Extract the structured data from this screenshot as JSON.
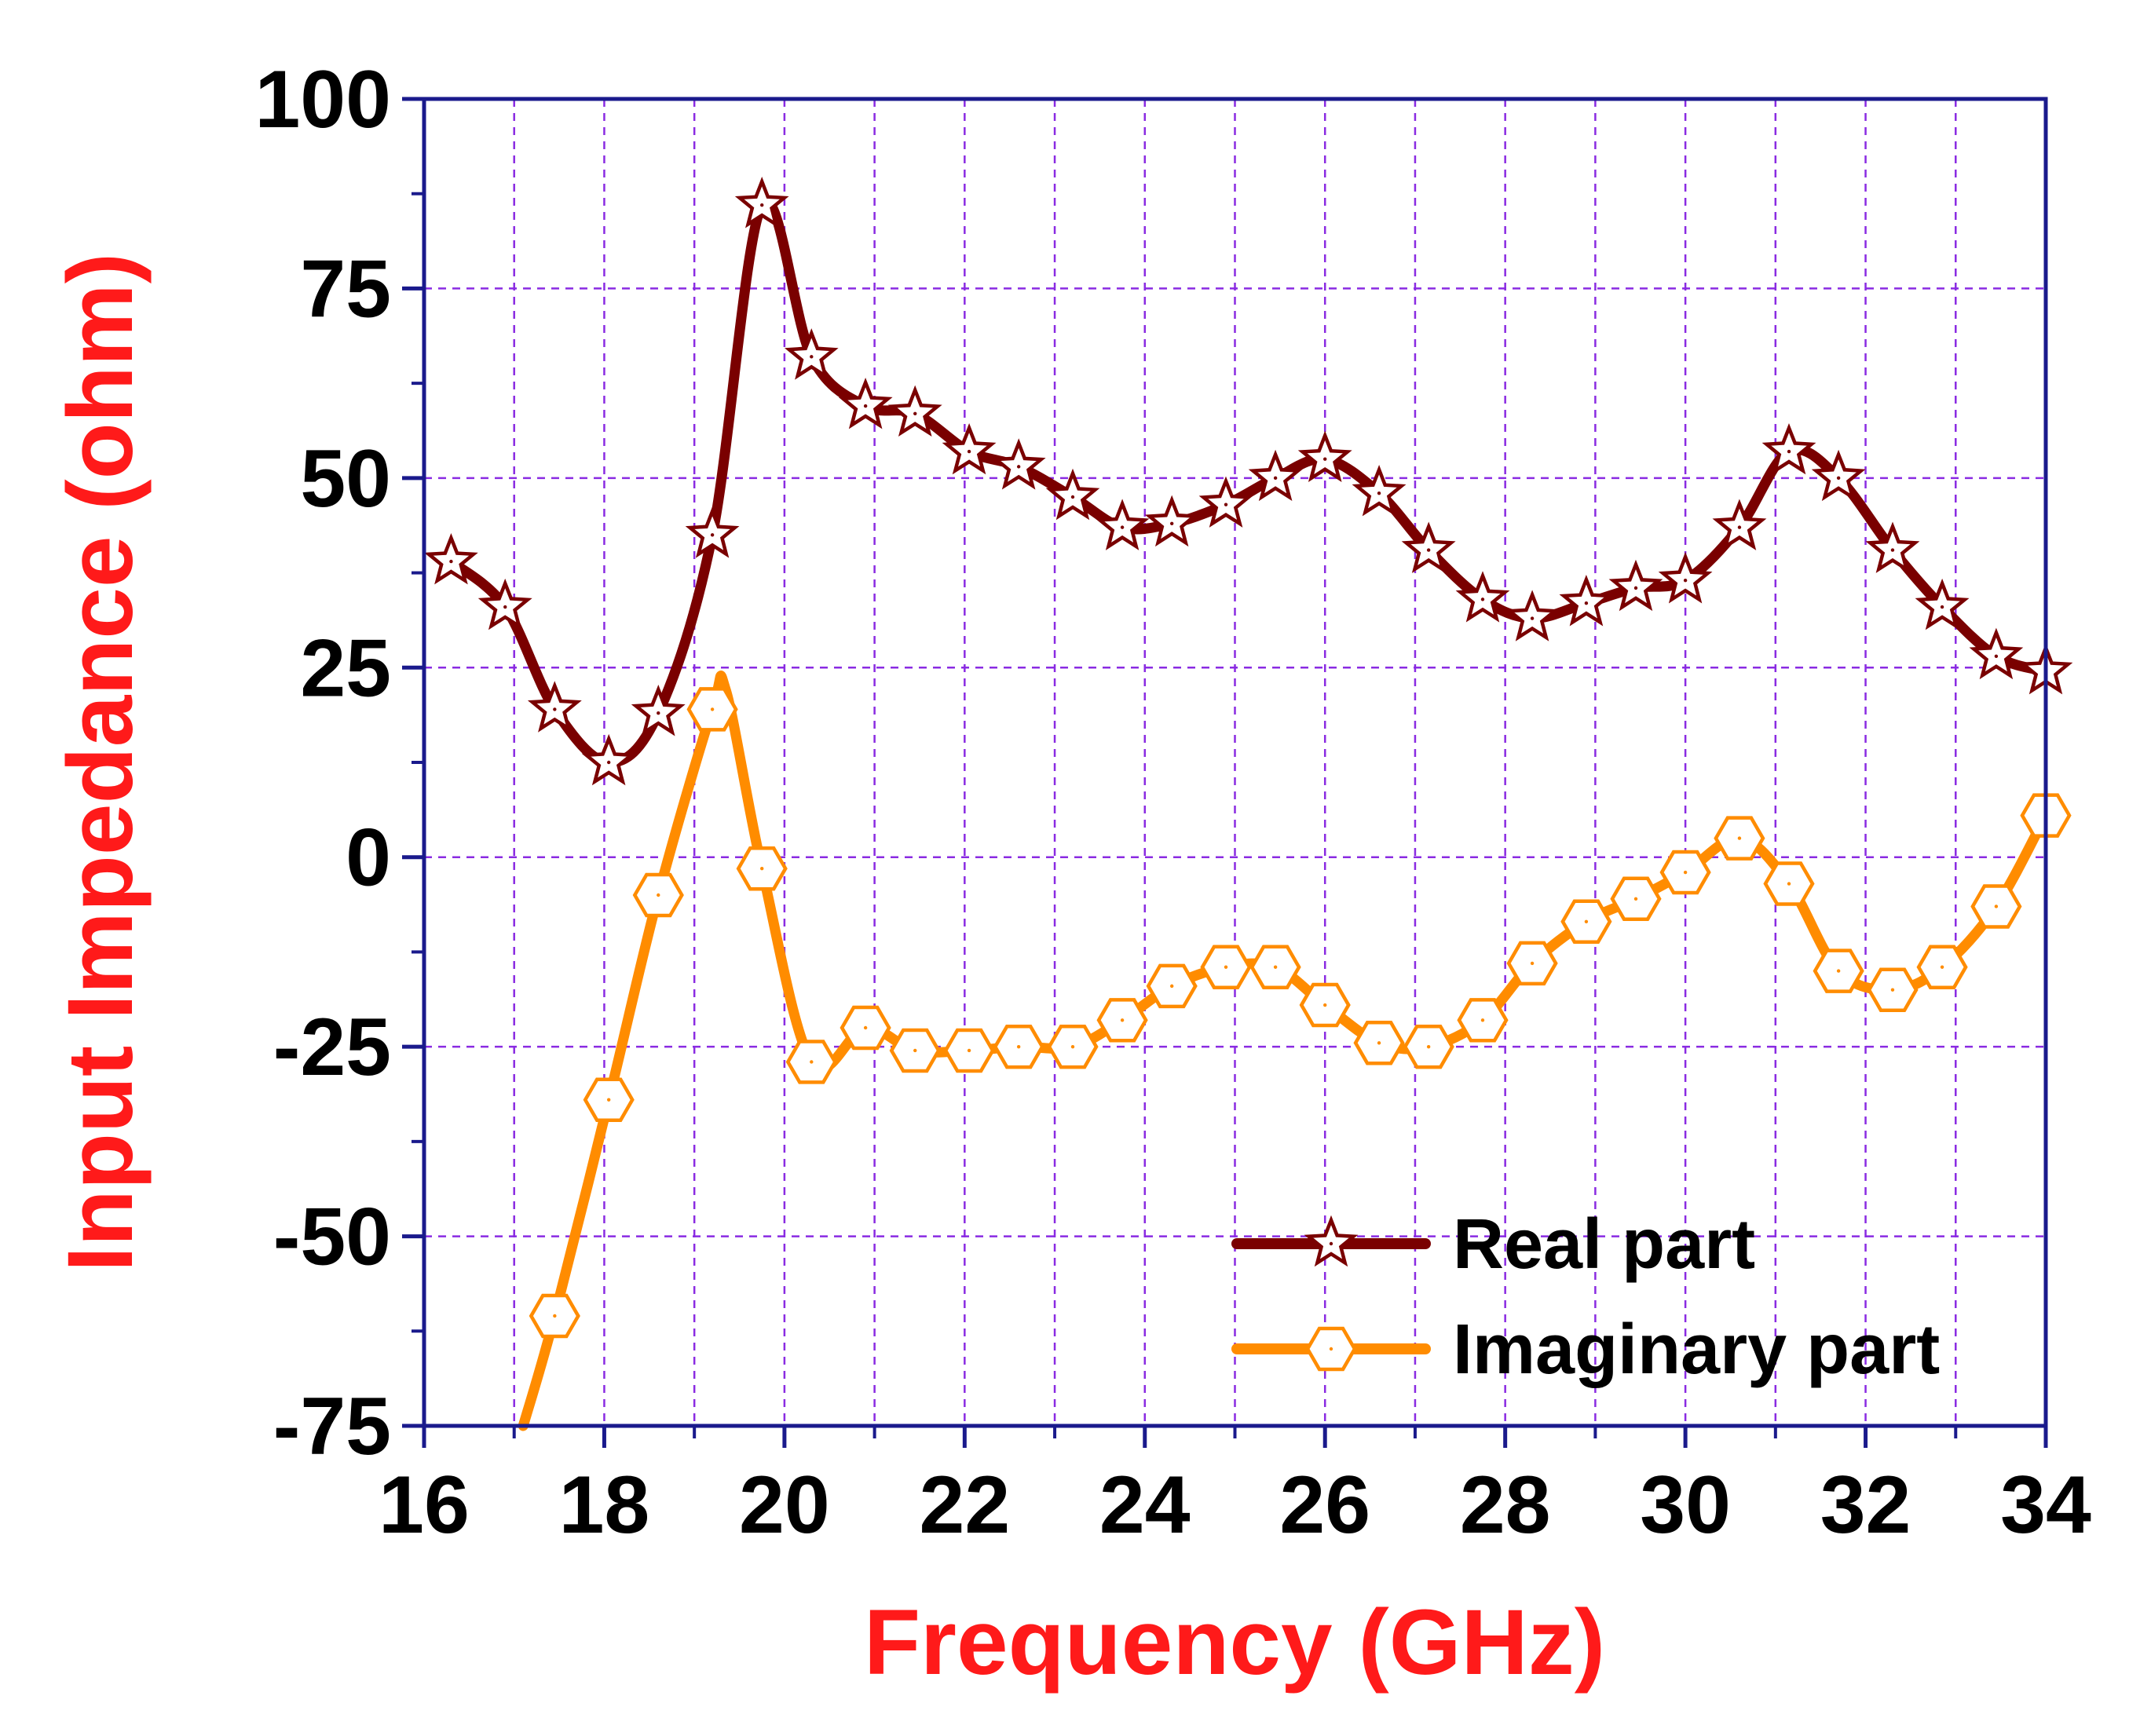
{
  "chart_data": {
    "type": "line",
    "xlabel": "Frequency (GHz)",
    "ylabel": "Input Impedance (ohm)",
    "xlim": [
      16,
      34
    ],
    "ylim": [
      -75,
      100
    ],
    "xticks": [
      16,
      18,
      20,
      22,
      24,
      26,
      28,
      30,
      32,
      34
    ],
    "yticks": [
      -75,
      -50,
      -25,
      0,
      25,
      50,
      75,
      100
    ],
    "grid": true,
    "legend_position": "bottom-right",
    "colors": {
      "axis": "#1a1a8c",
      "grid": "#8a2be2",
      "title": "#ff1a1a",
      "real": "#7a0000",
      "imaginary": "#ff8c00"
    },
    "series": [
      {
        "name": "Real part",
        "marker": "star",
        "x": [
          16.3,
          16.9,
          17.45,
          18.05,
          18.6,
          19.2,
          19.75,
          20.3,
          20.9,
          21.45,
          22.05,
          22.6,
          23.2,
          23.75,
          24.3,
          24.9,
          25.45,
          26.0,
          26.6,
          27.15,
          27.75,
          28.3,
          28.9,
          29.45,
          30.0,
          30.6,
          31.15,
          31.7,
          32.3,
          32.85,
          33.45,
          34.0
        ],
        "values": [
          39,
          33,
          19.5,
          12.5,
          19,
          42.5,
          86,
          66,
          59.5,
          58.5,
          53.5,
          51.5,
          47.5,
          43.5,
          44,
          46.5,
          50,
          52.5,
          48,
          40.5,
          34,
          31.5,
          33.5,
          35.5,
          36.5,
          43.5,
          53.5,
          50,
          40.5,
          33,
          26.5,
          24.5
        ]
      },
      {
        "name": "Imaginary part",
        "marker": "hexagon",
        "x": [
          17.1,
          17.45,
          18.05,
          18.6,
          19.2,
          19.35,
          19.75,
          20.3,
          20.9,
          21.45,
          22.05,
          22.6,
          23.2,
          23.75,
          24.3,
          24.9,
          25.45,
          26.0,
          26.6,
          27.15,
          27.75,
          28.3,
          28.9,
          29.45,
          30.0,
          30.6,
          31.15,
          31.7,
          32.3,
          32.85,
          33.45,
          34.0
        ],
        "values": [
          -75,
          -60.5,
          -32,
          -5,
          19.5,
          22,
          -1.5,
          -27,
          -22.5,
          -25.5,
          -25.5,
          -25,
          -25,
          -21.5,
          -17,
          -14.5,
          -14.5,
          -19.5,
          -24.5,
          -25,
          -21.5,
          -14,
          -8.5,
          -5.5,
          -2,
          2.5,
          -3.5,
          -15,
          -17.5,
          -14.5,
          -6.5,
          5.5
        ],
        "marker_from_index": 1
      }
    ]
  }
}
